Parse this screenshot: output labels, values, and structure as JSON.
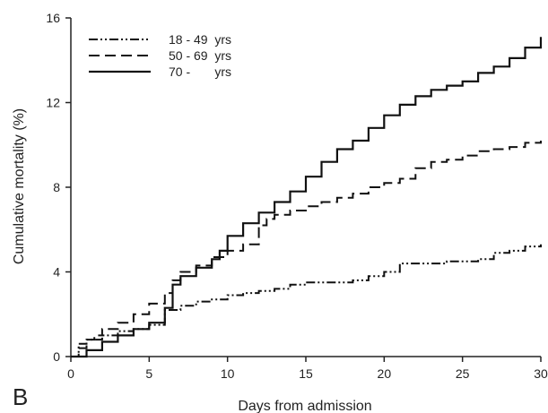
{
  "panel_label": "B",
  "chart_data": {
    "type": "line",
    "step": true,
    "xlabel": "Days from admission",
    "ylabel": "Cumulative mortality (%)",
    "xlim": [
      0,
      30
    ],
    "ylim": [
      0,
      16
    ],
    "xticks": [
      0,
      5,
      10,
      15,
      20,
      25,
      30
    ],
    "yticks": [
      0,
      4,
      8,
      12,
      16
    ],
    "grid": false,
    "legend_position": "top-left",
    "series": [
      {
        "name": "18 - 49  yrs",
        "line_style": "dash-dot-dot",
        "points": [
          [
            0,
            0
          ],
          [
            0.5,
            0.6
          ],
          [
            1,
            0.8
          ],
          [
            2,
            1
          ],
          [
            3,
            1.2
          ],
          [
            4,
            1.3
          ],
          [
            5,
            1.5
          ],
          [
            6,
            2.2
          ],
          [
            7,
            2.4
          ],
          [
            8,
            2.6
          ],
          [
            9,
            2.7
          ],
          [
            10,
            2.9
          ],
          [
            11,
            3
          ],
          [
            12,
            3.1
          ],
          [
            13,
            3.2
          ],
          [
            14,
            3.4
          ],
          [
            15,
            3.5
          ],
          [
            17,
            3.5
          ],
          [
            18,
            3.6
          ],
          [
            19,
            3.8
          ],
          [
            20,
            4
          ],
          [
            21,
            4.4
          ],
          [
            23,
            4.4
          ],
          [
            24,
            4.5
          ],
          [
            26,
            4.6
          ],
          [
            27,
            4.9
          ],
          [
            28,
            5
          ],
          [
            29,
            5.2
          ],
          [
            30,
            5.3
          ]
        ]
      },
      {
        "name": "50 - 69  yrs",
        "line_style": "dashed",
        "points": [
          [
            0,
            0
          ],
          [
            0.5,
            0.4
          ],
          [
            1,
            0.8
          ],
          [
            1.5,
            1
          ],
          [
            2,
            1.3
          ],
          [
            3,
            1.6
          ],
          [
            4,
            2
          ],
          [
            5,
            2.5
          ],
          [
            6,
            3
          ],
          [
            6.5,
            3.6
          ],
          [
            7,
            4
          ],
          [
            8,
            4.3
          ],
          [
            9,
            4.7
          ],
          [
            10,
            5
          ],
          [
            11,
            5.3
          ],
          [
            12,
            6.2
          ],
          [
            12.5,
            6.5
          ],
          [
            13,
            6.7
          ],
          [
            14,
            6.9
          ],
          [
            15,
            7.1
          ],
          [
            16,
            7.3
          ],
          [
            17,
            7.5
          ],
          [
            18,
            7.7
          ],
          [
            19,
            8
          ],
          [
            20,
            8.2
          ],
          [
            21,
            8.4
          ],
          [
            22,
            8.9
          ],
          [
            23,
            9.2
          ],
          [
            24,
            9.3
          ],
          [
            25,
            9.5
          ],
          [
            26,
            9.7
          ],
          [
            27,
            9.8
          ],
          [
            28,
            9.9
          ],
          [
            29,
            10.1
          ],
          [
            30,
            10.2
          ]
        ]
      },
      {
        "name": "70 -       yrs",
        "line_style": "solid",
        "points": [
          [
            0,
            0
          ],
          [
            1,
            0.3
          ],
          [
            2,
            0.7
          ],
          [
            3,
            1
          ],
          [
            4,
            1.3
          ],
          [
            5,
            1.6
          ],
          [
            6,
            2.3
          ],
          [
            6.5,
            3.4
          ],
          [
            7,
            3.8
          ],
          [
            8,
            4.2
          ],
          [
            9,
            4.6
          ],
          [
            9.5,
            5
          ],
          [
            10,
            5.7
          ],
          [
            11,
            6.3
          ],
          [
            12,
            6.8
          ],
          [
            13,
            7.3
          ],
          [
            14,
            7.8
          ],
          [
            15,
            8.5
          ],
          [
            16,
            9.2
          ],
          [
            17,
            9.8
          ],
          [
            18,
            10.2
          ],
          [
            19,
            10.8
          ],
          [
            20,
            11.4
          ],
          [
            21,
            11.9
          ],
          [
            22,
            12.3
          ],
          [
            23,
            12.6
          ],
          [
            24,
            12.8
          ],
          [
            25,
            13
          ],
          [
            26,
            13.4
          ],
          [
            27,
            13.7
          ],
          [
            28,
            14.1
          ],
          [
            29,
            14.6
          ],
          [
            30,
            15.1
          ]
        ]
      }
    ]
  }
}
